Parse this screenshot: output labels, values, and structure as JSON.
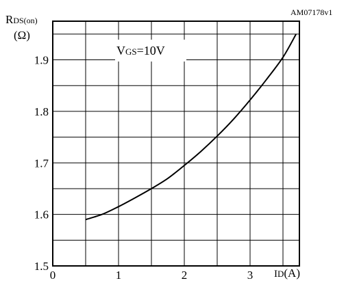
{
  "figure_id": "AM07178v1",
  "annotation": {
    "prefix": "V",
    "sub": "GS",
    "suffix": "=10V"
  },
  "chart_data": {
    "type": "line",
    "ylabel": {
      "main": "R",
      "sub": "DS(on)",
      "unit": "(Ω)"
    },
    "xlabel": {
      "main": "I",
      "sub": "D",
      "unit": "(A)"
    },
    "xlim": [
      0,
      3.75
    ],
    "ylim": [
      1.5,
      1.975
    ],
    "x_ticks": [
      "0",
      "1",
      "2",
      "3"
    ],
    "x_tick_values": [
      0,
      1,
      2,
      3
    ],
    "y_ticks": [
      "1.5",
      "1.6",
      "1.7",
      "1.8",
      "1.9"
    ],
    "y_tick_values": [
      1.5,
      1.6,
      1.7,
      1.8,
      1.9
    ],
    "grid": true,
    "series": [
      {
        "color": "#000000",
        "x": [
          0.5,
          0.75,
          1.0,
          1.25,
          1.5,
          1.75,
          2.0,
          2.25,
          2.5,
          2.75,
          3.0,
          3.25,
          3.5,
          3.7
        ],
        "y": [
          1.59,
          1.6,
          1.615,
          1.632,
          1.65,
          1.67,
          1.695,
          1.722,
          1.752,
          1.785,
          1.822,
          1.862,
          1.905,
          1.95
        ]
      }
    ]
  }
}
